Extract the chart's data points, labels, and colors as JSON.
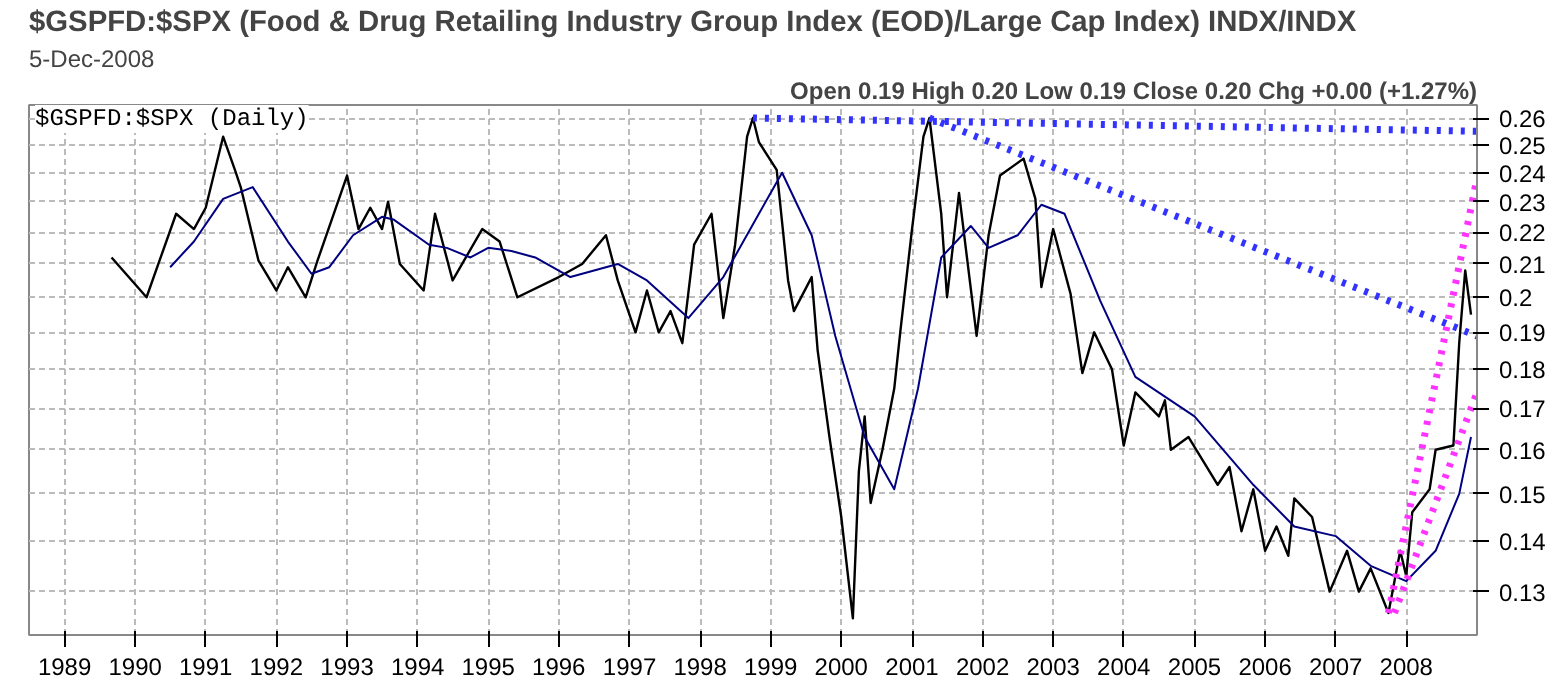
{
  "chart_data": {
    "type": "line",
    "title": "$GSPFD:$SPX (Food & Drug Retailing Industry Group Index (EOD)/Large Cap Index) INDX/INDX",
    "subtitle": "5-Dec-2008",
    "annotations": [
      "Open 0.19 High 0.20 Low 0.19 Close 0.20 Chg +0.00 (+1.27%)",
      "$GSPFD:$SPX (Daily)"
    ],
    "log": "y",
    "grid": true,
    "marker": "none",
    "line_style": "solid",
    "xlim": [
      "1988-07",
      "2009-01"
    ],
    "xticks": [
      "1989",
      "1990",
      "1991",
      "1992",
      "1993",
      "1994",
      "1995",
      "1996",
      "1997",
      "1998",
      "1999",
      "2000",
      "2001",
      "2002",
      "2003",
      "2004",
      "2005",
      "2006",
      "2007",
      "2008"
    ],
    "ylim": [
      0.122,
      0.265
    ],
    "yticks": [
      0.13,
      0.14,
      0.15,
      0.16,
      0.17,
      0.18,
      0.19,
      0.2,
      0.21,
      0.22,
      0.23,
      0.24,
      0.25,
      0.26
    ],
    "series": [
      {
        "color": "#000000",
        "x": [
          "1989-09",
          "1990-03",
          "1990-05",
          "1990-08",
          "1990-11",
          "1991-01",
          "1991-04",
          "1991-06",
          "1991-07",
          "1991-10",
          "1992-01",
          "1992-03",
          "1992-06",
          "1992-08",
          "1993-01",
          "1993-03",
          "1993-05",
          "1993-07",
          "1993-08",
          "1993-10",
          "1994-02",
          "1994-04",
          "1994-07",
          "1994-12",
          "1995-03",
          "1995-06",
          "1996-01",
          "1996-05",
          "1996-09",
          "1996-11",
          "1997-02",
          "1997-04",
          "1997-06",
          "1997-08",
          "1997-10",
          "1997-12",
          "1998-03",
          "1998-05",
          "1998-07",
          "1998-09",
          "1998-10",
          "1998-11",
          "1999-02",
          "1999-04",
          "1999-05",
          "1999-08",
          "1999-09",
          "1999-11",
          "2000-01",
          "2000-03",
          "2000-04",
          "2000-05",
          "2000-06",
          "2000-08",
          "2000-10",
          "2000-11",
          "2001-01",
          "2001-03",
          "2001-04",
          "2001-06",
          "2001-07",
          "2001-09",
          "2001-12",
          "2002-02",
          "2002-04",
          "2002-08",
          "2002-10",
          "2002-11",
          "2003-01",
          "2003-04",
          "2003-06",
          "2003-08",
          "2003-11",
          "2004-01",
          "2004-03",
          "2004-07",
          "2004-08",
          "2004-09",
          "2004-12",
          "2005-05",
          "2005-07",
          "2005-09",
          "2005-11",
          "2006-01",
          "2006-03",
          "2006-05",
          "2006-06",
          "2006-09",
          "2006-12",
          "2007-03",
          "2007-05",
          "2007-07",
          "2007-10",
          "2007-12",
          "2008-01",
          "2008-02",
          "2008-05",
          "2008-06",
          "2008-09",
          "2008-10",
          "2008-11",
          "2008-12"
        ],
        "values": [
          0.212,
          0.2,
          0.21,
          0.226,
          0.221,
          0.228,
          0.253,
          0.241,
          0.235,
          0.211,
          0.202,
          0.209,
          0.2,
          0.211,
          0.239,
          0.221,
          0.228,
          0.221,
          0.23,
          0.21,
          0.202,
          0.226,
          0.205,
          0.221,
          0.217,
          0.2,
          0.206,
          0.21,
          0.219,
          0.205,
          0.19,
          0.202,
          0.19,
          0.196,
          0.187,
          0.216,
          0.226,
          0.194,
          0.216,
          0.253,
          0.26,
          0.251,
          0.241,
          0.205,
          0.196,
          0.206,
          0.185,
          0.163,
          0.145,
          0.125,
          0.155,
          0.168,
          0.148,
          0.16,
          0.175,
          0.19,
          0.221,
          0.253,
          0.26,
          0.226,
          0.2,
          0.233,
          0.189,
          0.219,
          0.239,
          0.245,
          0.231,
          0.203,
          0.221,
          0.201,
          0.179,
          0.19,
          0.18,
          0.161,
          0.174,
          0.168,
          0.172,
          0.16,
          0.163,
          0.152,
          0.156,
          0.142,
          0.151,
          0.138,
          0.143,
          0.137,
          0.149,
          0.145,
          0.13,
          0.138,
          0.13,
          0.1345,
          0.126,
          0.138,
          0.133,
          0.146,
          0.151,
          0.16,
          0.161,
          0.187,
          0.208,
          0.195
        ]
      },
      {
        "color": "#000080",
        "x": [
          "1990-07",
          "1990-11",
          "1991-04",
          "1991-09",
          "1992-03",
          "1992-07",
          "1992-10",
          "1993-02",
          "1993-07",
          "1993-09",
          "1994-03",
          "1994-06",
          "1994-10",
          "1995-01",
          "1995-05",
          "1995-09",
          "1996-03",
          "1996-11",
          "1997-04",
          "1997-11",
          "1998-05",
          "1998-11",
          "1999-03",
          "1999-08",
          "1999-12",
          "2000-05",
          "2000-10",
          "2001-02",
          "2001-06",
          "2001-11",
          "2002-02",
          "2002-07",
          "2002-11",
          "2003-03",
          "2003-09",
          "2004-03",
          "2005-01",
          "2005-11",
          "2006-06",
          "2007-01",
          "2007-07",
          "2008-01",
          "2008-06",
          "2008-10",
          "2008-12"
        ],
        "values": [
          0.209,
          0.217,
          0.231,
          0.235,
          0.217,
          0.207,
          0.209,
          0.219,
          0.225,
          0.224,
          0.216,
          0.215,
          0.212,
          0.215,
          0.214,
          0.212,
          0.206,
          0.21,
          0.205,
          0.194,
          0.206,
          0.226,
          0.24,
          0.219,
          0.189,
          0.163,
          0.151,
          0.175,
          0.212,
          0.222,
          0.215,
          0.219,
          0.229,
          0.226,
          0.199,
          0.178,
          0.168,
          0.152,
          0.143,
          0.141,
          0.135,
          0.132,
          0.138,
          0.15,
          0.163
        ]
      },
      {
        "color": "#3333ff",
        "line_style": "dotted",
        "x": [
          "1998-10",
          "2009-01"
        ],
        "values": [
          0.26,
          0.255
        ]
      },
      {
        "color": "#3333ff",
        "line_style": "dotted",
        "x": [
          "2001-04",
          "2009-01"
        ],
        "values": [
          0.26,
          0.189
        ]
      },
      {
        "color": "#ff33ff",
        "line_style": "dotted",
        "x": [
          "2007-10",
          "2009-01"
        ],
        "values": [
          0.126,
          0.238
        ]
      },
      {
        "color": "#ff33ff",
        "line_style": "dotted",
        "x": [
          "2007-11",
          "2009-01"
        ],
        "values": [
          0.126,
          0.174
        ]
      }
    ]
  }
}
